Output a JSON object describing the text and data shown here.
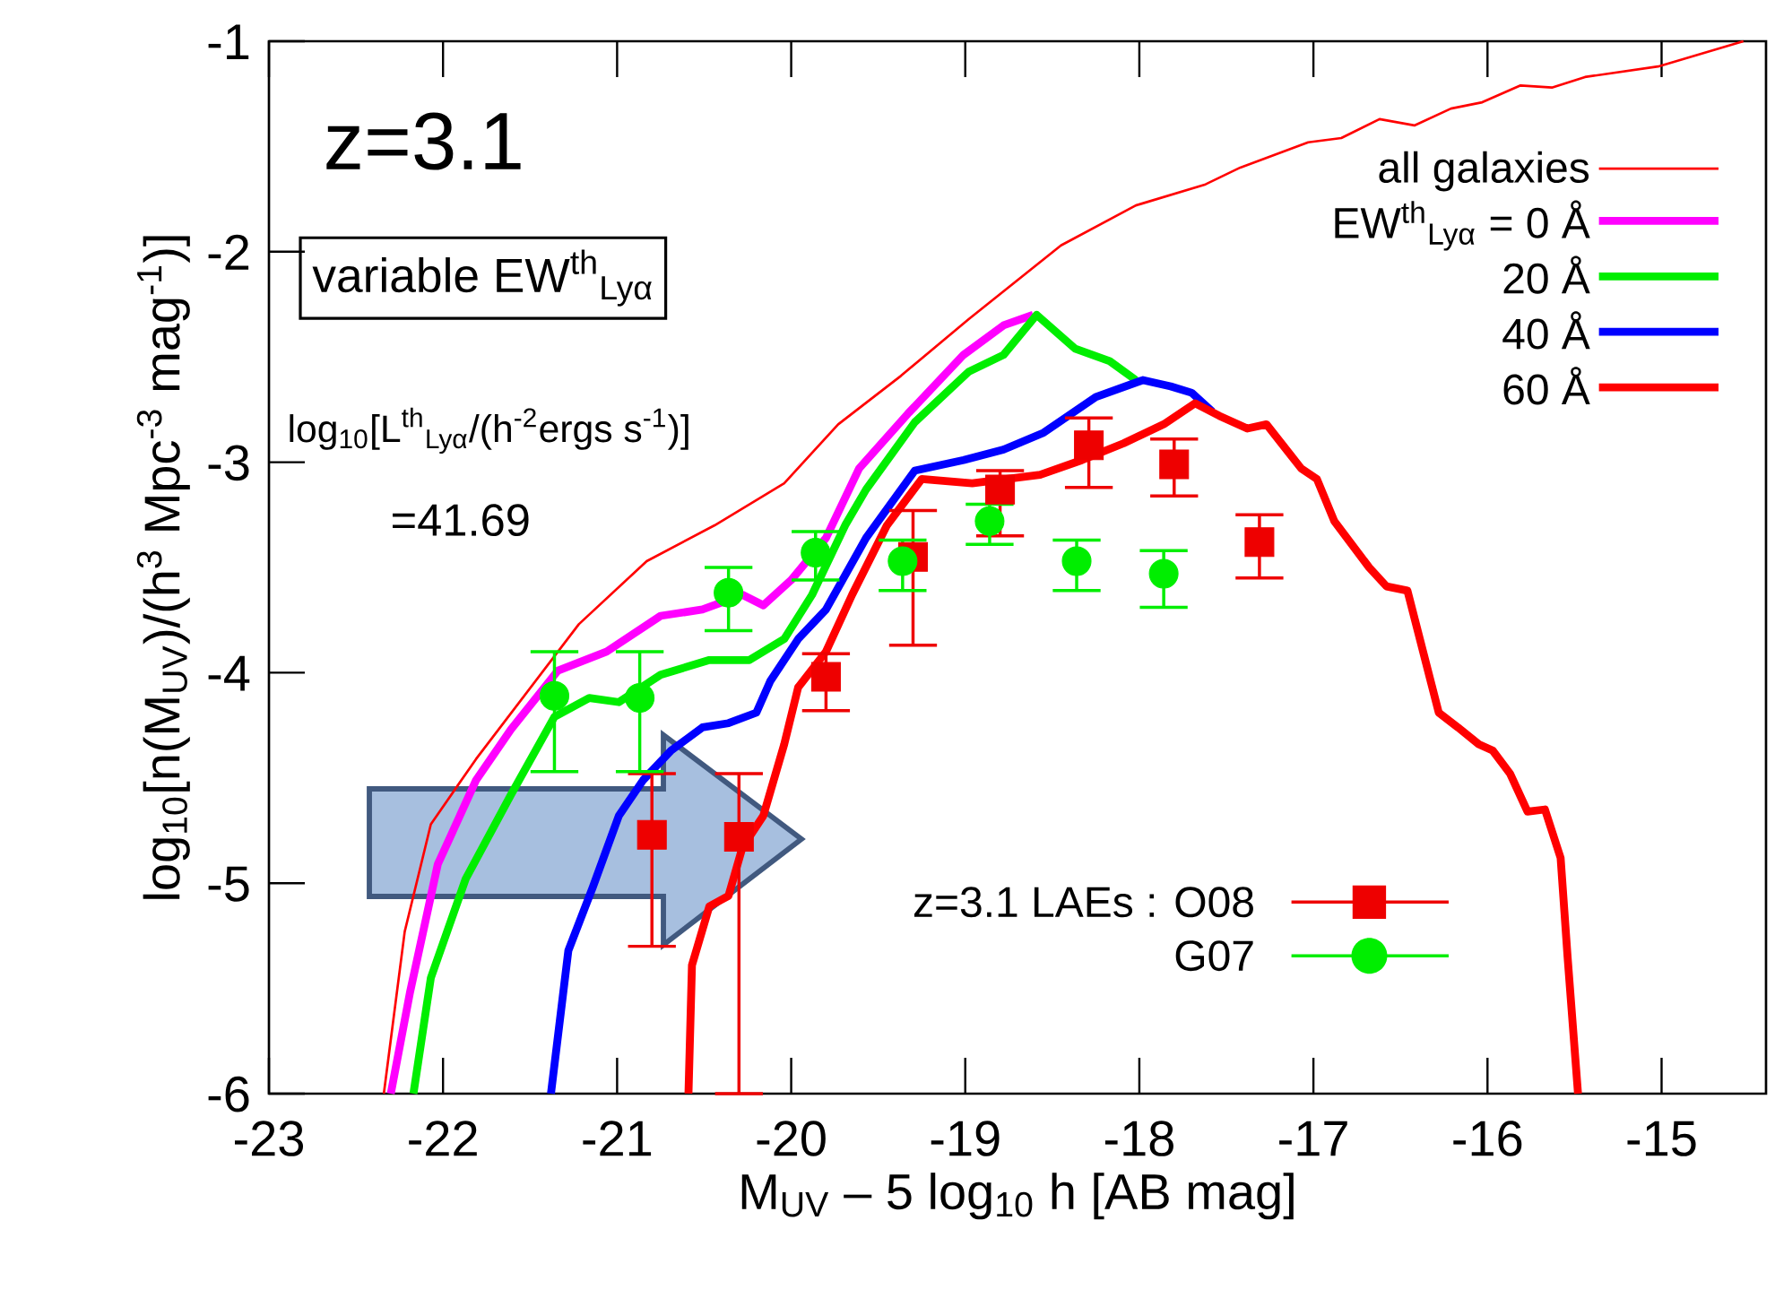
{
  "chart_data": {
    "type": "line",
    "xlabel": "M$_{UV}$ – 5 log$_{10}$ h [AB mag]",
    "ylabel": "log$_{10}$[n(M$_{UV}$)/(h$^{3}$ Mpc$^{-3}$  mag$^{-1}$)]",
    "annotations": [
      "z=3.1",
      "variable EW$^{th}$$_{Lyα}$",
      "log$_{10}$[L$^{th}$$_{Lyα}$/(h$^{-2}$ergs s$^{-1}$)]",
      "=41.69"
    ],
    "xlim": [
      -23,
      -14.4
    ],
    "ylim": [
      -6,
      -1
    ],
    "xticks": [
      -23,
      -22,
      -21,
      -20,
      -19,
      -18,
      -17,
      -16,
      -15
    ],
    "yticks": [
      -6,
      -5,
      -4,
      -3,
      -2,
      -1
    ],
    "legend": "top right",
    "series": [
      {
        "name": "all galaxies",
        "color": "#ff0000",
        "x": [
          -22.34,
          -22.22,
          -22.07,
          -21.81,
          -21.22,
          -20.83,
          -20.44,
          -20.04,
          -19.73,
          -19.37,
          -18.98,
          -18.45,
          -18.02,
          -17.62,
          -17.42,
          -17.03,
          -16.84,
          -16.62,
          -16.42,
          -16.21,
          -16.03,
          -15.81,
          -15.63,
          -15.44,
          -15.02,
          -14.53
        ],
        "values": [
          -6.0,
          -5.23,
          -4.72,
          -4.41,
          -3.77,
          -3.47,
          -3.3,
          -3.1,
          -2.82,
          -2.59,
          -2.32,
          -1.97,
          -1.78,
          -1.68,
          -1.6,
          -1.48,
          -1.46,
          -1.37,
          -1.4,
          -1.32,
          -1.29,
          -1.21,
          -1.22,
          -1.17,
          -1.12,
          -1.0
        ]
      },
      {
        "name": "EW$^{th}$$_{Lyα}$ = 0 Å",
        "color": "#ff00ff",
        "x": [
          -22.3,
          -22.19,
          -22.03,
          -21.81,
          -21.61,
          -21.34,
          -21.06,
          -20.75,
          -20.51,
          -20.28,
          -20.16,
          -20.0,
          -19.8,
          -19.61,
          -19.33,
          -19.01,
          -18.78,
          -18.61
        ],
        "values": [
          -6.0,
          -5.52,
          -4.91,
          -4.51,
          -4.27,
          -3.99,
          -3.9,
          -3.73,
          -3.7,
          -3.63,
          -3.68,
          -3.56,
          -3.36,
          -3.03,
          -2.77,
          -2.49,
          -2.35,
          -2.3
        ]
      },
      {
        "name": "20 Å",
        "color": "#00ee00",
        "x": [
          -22.17,
          -22.07,
          -21.87,
          -21.61,
          -21.36,
          -21.16,
          -20.99,
          -20.75,
          -20.47,
          -20.24,
          -20.04,
          -19.88,
          -19.69,
          -19.57,
          -19.29,
          -18.98,
          -18.78,
          -18.59,
          -18.37,
          -18.17,
          -18.02
        ],
        "values": [
          -6.0,
          -5.45,
          -4.98,
          -4.58,
          -4.21,
          -4.12,
          -4.14,
          -4.01,
          -3.94,
          -3.94,
          -3.84,
          -3.63,
          -3.3,
          -3.13,
          -2.81,
          -2.57,
          -2.49,
          -2.3,
          -2.46,
          -2.52,
          -2.61
        ]
      },
      {
        "name": "40 Å",
        "color": "#0000ff",
        "x": [
          -21.38,
          -21.28,
          -21.14,
          -20.99,
          -20.85,
          -20.69,
          -20.51,
          -20.36,
          -20.2,
          -20.12,
          -19.96,
          -19.8,
          -19.57,
          -19.29,
          -19.01,
          -18.78,
          -18.55,
          -18.25,
          -17.98,
          -17.82,
          -17.7,
          -17.58
        ],
        "values": [
          -6.0,
          -5.32,
          -5.02,
          -4.68,
          -4.51,
          -4.37,
          -4.26,
          -4.24,
          -4.19,
          -4.04,
          -3.84,
          -3.7,
          -3.36,
          -3.04,
          -2.99,
          -2.94,
          -2.86,
          -2.69,
          -2.61,
          -2.64,
          -2.67,
          -2.76
        ]
      },
      {
        "name": "60 Å",
        "color": "#ff0000",
        "x": [
          -20.59,
          -20.57,
          -20.47,
          -20.36,
          -20.28,
          -20.16,
          -20.04,
          -19.96,
          -19.8,
          -19.65,
          -19.45,
          -19.25,
          -18.96,
          -18.57,
          -18.33,
          -18.09,
          -17.86,
          -17.68,
          -17.54,
          -17.38,
          -17.27,
          -17.07,
          -16.98,
          -16.88,
          -16.68,
          -16.58,
          -16.46,
          -16.28,
          -16.17,
          -16.05,
          -15.97,
          -15.87,
          -15.77,
          -15.67,
          -15.58,
          -15.54,
          -15.48
        ],
        "values": [
          -6.0,
          -5.39,
          -5.11,
          -5.06,
          -4.83,
          -4.68,
          -4.34,
          -4.07,
          -3.9,
          -3.63,
          -3.3,
          -3.08,
          -3.1,
          -3.06,
          -2.99,
          -2.91,
          -2.82,
          -2.72,
          -2.78,
          -2.84,
          -2.82,
          -3.03,
          -3.08,
          -3.28,
          -3.5,
          -3.59,
          -3.61,
          -4.19,
          -4.26,
          -4.34,
          -4.37,
          -4.48,
          -4.66,
          -4.65,
          -4.88,
          -5.35,
          -6.0
        ]
      },
      {
        "name": "z=3.1 LAEs : O08",
        "type": "scatter",
        "marker": "square",
        "color": "#ee0000",
        "x": [
          -20.8,
          -20.3,
          -19.8,
          -19.3,
          -18.8,
          -18.29,
          -17.8,
          -17.31
        ],
        "values": [
          -4.77,
          -4.78,
          -4.02,
          -3.45,
          -3.13,
          -2.92,
          -3.01,
          -3.38
        ],
        "errors": [
          [
            -5.3,
            -4.48
          ],
          [
            -6.0,
            -4.48
          ],
          [
            -4.18,
            -3.91
          ],
          [
            -3.87,
            -3.23
          ],
          [
            -3.35,
            -3.04
          ],
          [
            -3.12,
            -2.79
          ],
          [
            -3.16,
            -2.89
          ],
          [
            -3.55,
            -3.25
          ]
        ]
      },
      {
        "name": "G07",
        "type": "scatter",
        "marker": "circle",
        "color": "#00ee00",
        "x": [
          -21.36,
          -20.87,
          -20.36,
          -19.86,
          -19.36,
          -18.86,
          -18.36,
          -17.86
        ],
        "values": [
          -4.11,
          -4.12,
          -3.62,
          -3.43,
          -3.47,
          -3.28,
          -3.47,
          -3.53
        ],
        "errors": [
          [
            -4.47,
            -3.9
          ],
          [
            -4.47,
            -3.9
          ],
          [
            -3.8,
            -3.5
          ],
          [
            -3.56,
            -3.33
          ],
          [
            -3.61,
            -3.37
          ],
          [
            -3.39,
            -3.2
          ],
          [
            -3.61,
            -3.37
          ],
          [
            -3.69,
            -3.42
          ]
        ]
      }
    ]
  }
}
